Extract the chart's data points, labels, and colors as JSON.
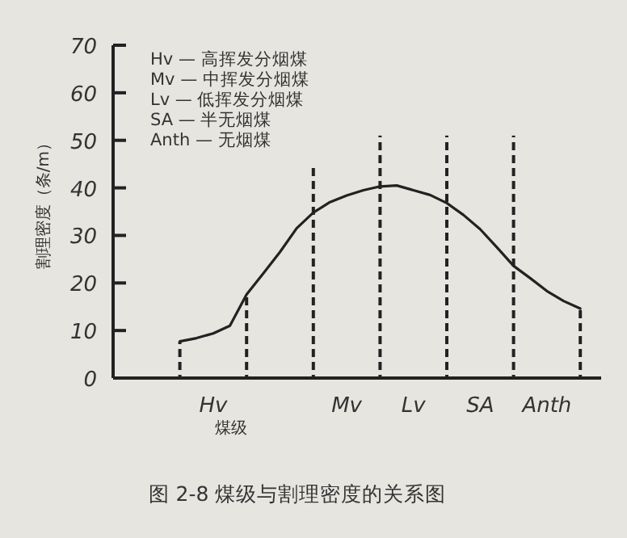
{
  "chart_data": {
    "type": "line",
    "xlabel": "煤级",
    "ylabel": "割理密度（条/m）",
    "annotations": [
      "Hv — 高挥发分烟煤",
      "Mv — 中挥发分烟煤",
      "Lv — 低挥发分烟煤",
      "SA — 半无烟煤",
      "Anth — 无烟煤",
      "图 2-8  煤级与割理密度的关系图"
    ],
    "categories": [
      null,
      null,
      null,
      null,
      null,
      null,
      "Hv",
      null,
      null,
      null,
      null,
      null,
      null,
      null,
      "Mv",
      null,
      null,
      null,
      "Lv",
      null,
      null,
      null,
      "SA",
      null,
      null,
      null,
      "Anth",
      null,
      null
    ],
    "series": [
      {
        "color": "#222222",
        "values": [
          null,
          null,
          null,
          null,
          7.7,
          8.4,
          9.4,
          11,
          17.6,
          22,
          26.5,
          31.5,
          34.8,
          37,
          38.4,
          39.5,
          40.3,
          40.5,
          39.5,
          38.5,
          36.8,
          34.3,
          31.3,
          27.5,
          23.6,
          21,
          18.3,
          16.2,
          14.6
        ]
      },
      {
        "type": "bar",
        "line_style": "dashed",
        "color": "#222222",
        "values": [
          null,
          null,
          null,
          null,
          7.7,
          null,
          null,
          null,
          17.6,
          null,
          null,
          null,
          45,
          null,
          null,
          null,
          51,
          null,
          null,
          null,
          51,
          null,
          null,
          null,
          51,
          null,
          null,
          null,
          14.6
        ]
      }
    ],
    "ylim": [
      0,
      70
    ],
    "yticks": [
      0,
      10,
      20,
      30,
      40,
      50,
      60,
      70
    ],
    "line_style": "solid",
    "grid": false
  }
}
